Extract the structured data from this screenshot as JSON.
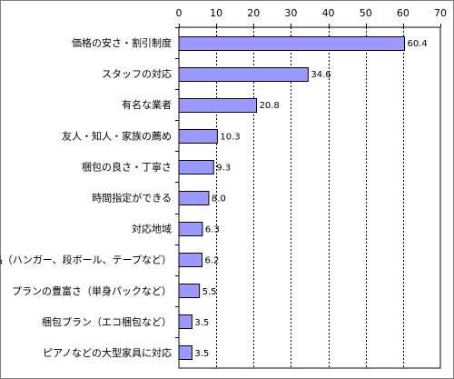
{
  "chart_data": {
    "type": "bar",
    "orientation": "horizontal",
    "categories": [
      "価格の安さ・割引制度",
      "スタッフの対応",
      "有名な業者",
      "友人・知人・家族の薦め",
      "梱包の良さ・丁寧さ",
      "時間指定ができる",
      "対応地域",
      "付帯品（ハンガー、段ボール、テープなど）",
      "プランの豊富さ（単身パックなど）",
      "梱包プラン（エコ梱包など）",
      "ピアノなどの大型家具に対応"
    ],
    "values": [
      60.4,
      34.6,
      20.8,
      10.3,
      9.3,
      8.0,
      6.3,
      6.2,
      5.5,
      3.5,
      3.5
    ],
    "value_labels": [
      "60.4",
      "34.6",
      "20.8",
      "10.3",
      "9.3",
      "8.0",
      "6.3",
      "6.2",
      "5.5",
      "3.5",
      "3.5"
    ],
    "xlim": [
      0,
      70
    ],
    "xticks": [
      0,
      10,
      20,
      30,
      40,
      50,
      60,
      70
    ],
    "title": "",
    "xlabel": "",
    "ylabel": "",
    "axis_position": "top",
    "grid": true,
    "grid_style": "dashed",
    "legend": false,
    "colors": {
      "bar_fill": "#9999ff",
      "bar_stroke": "#000000",
      "grid": "#000000",
      "frame": "#808080"
    }
  }
}
